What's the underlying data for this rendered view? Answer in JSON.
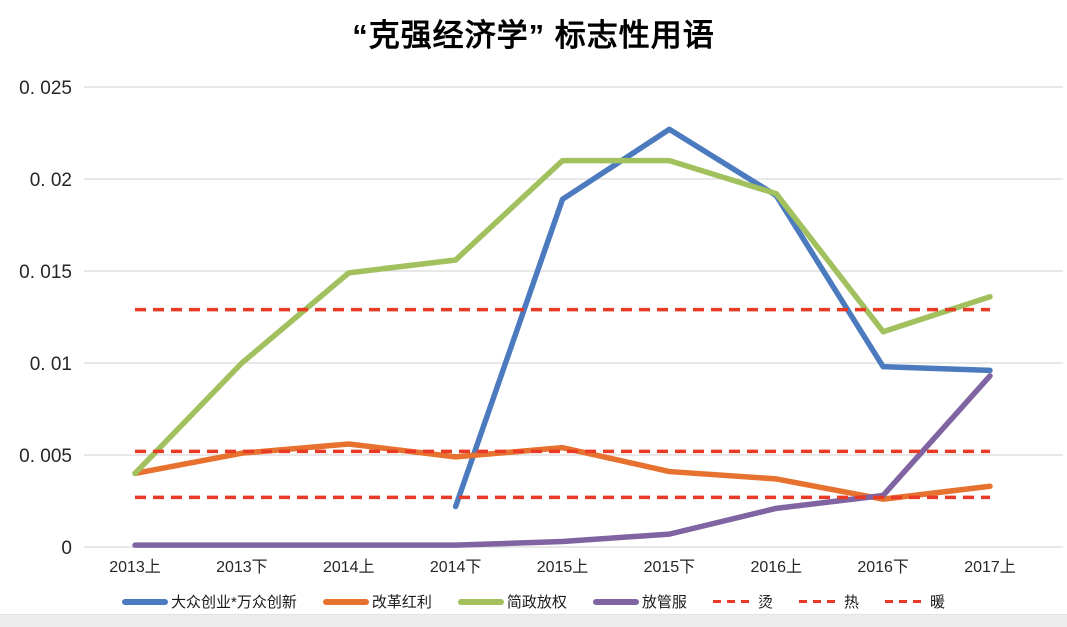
{
  "title": "“克强经济学” 标志性用语",
  "chart_data": {
    "type": "line",
    "title": "“克强经济学” 标志性用语",
    "categories": [
      "2013上",
      "2013下",
      "2014上",
      "2014下",
      "2015上",
      "2015下",
      "2016上",
      "2016下",
      "2017上"
    ],
    "series": [
      {
        "name": "大众创业*万众创新",
        "color": "#4B7BBE",
        "values": [
          null,
          null,
          null,
          0.0022,
          0.0189,
          0.0227,
          0.0191,
          0.0098,
          0.0096
        ]
      },
      {
        "name": "改革红利",
        "color": "#E7712F",
        "values": [
          0.004,
          0.0051,
          0.0056,
          0.0049,
          0.0054,
          0.0041,
          0.0037,
          0.0026,
          0.0033
        ]
      },
      {
        "name": "简政放权",
        "color": "#A2C15E",
        "values": [
          0.004,
          0.01,
          0.0149,
          0.0156,
          0.021,
          0.021,
          0.0192,
          0.0117,
          0.0136
        ]
      },
      {
        "name": "放管服",
        "color": "#8064A2",
        "values": [
          0.0001,
          0.0001,
          0.0001,
          0.0001,
          0.0003,
          0.0007,
          0.0021,
          0.0028,
          0.0093
        ]
      }
    ],
    "thresholds": [
      {
        "name": "烫",
        "value": 0.0129,
        "color": "#E83A25",
        "style": "dashed"
      },
      {
        "name": "热",
        "value": 0.0052,
        "color": "#E83A25",
        "style": "dashed"
      },
      {
        "name": "暖",
        "value": 0.0027,
        "color": "#E83A25",
        "style": "dashed"
      }
    ],
    "y_ticks": {
      "labels": [
        "0. 025",
        "0. 02",
        "0. 015",
        "0. 01",
        "0. 005",
        "0"
      ],
      "values": [
        0.025,
        0.02,
        0.015,
        0.01,
        0.005,
        0
      ]
    },
    "ylim": [
      0,
      0.025
    ],
    "xlabel": "",
    "ylabel": "",
    "grid": true,
    "grid_color": "#D9D9D9",
    "text_color": "#262626",
    "legend_position": "bottom"
  }
}
